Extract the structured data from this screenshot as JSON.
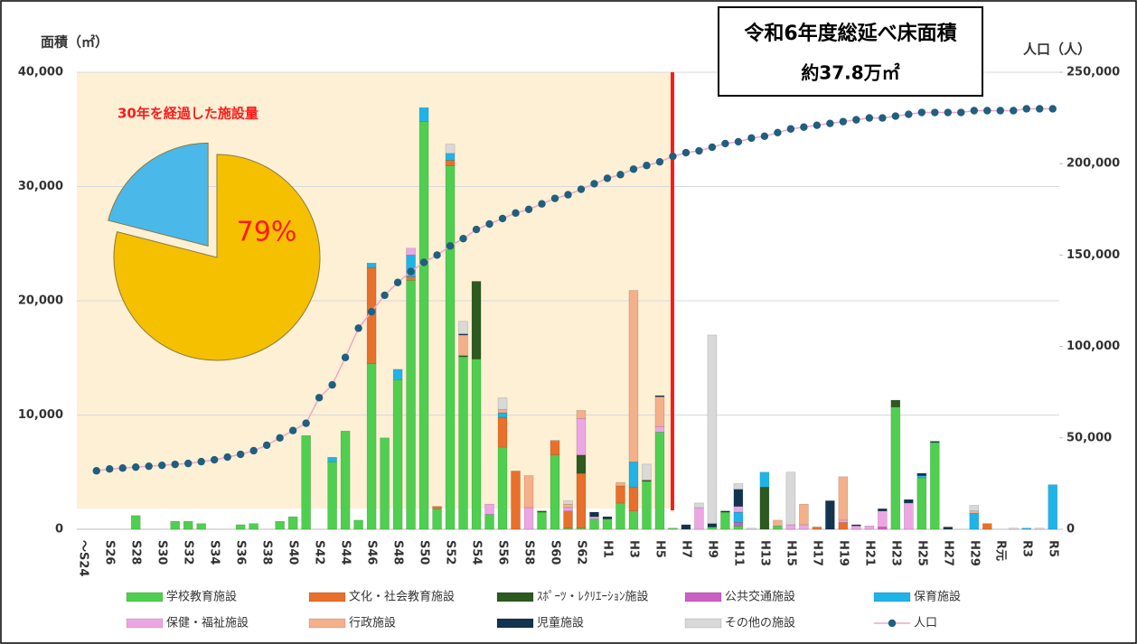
{
  "chart_data": [
    {
      "type": "bar",
      "stacked": true,
      "title": "令和6年度総延べ床面積",
      "subtitle": "約37.8万㎡",
      "ylabel": "面積（㎡）",
      "y2label": "人口（人）",
      "annotations": [
        "30年を経過した施設量"
      ],
      "categories": [
        "～S24",
        null,
        "S26",
        null,
        "S28",
        null,
        "S30",
        null,
        "S32",
        null,
        "S34",
        null,
        "S36",
        null,
        "S38",
        null,
        "S40",
        null,
        "S42",
        null,
        "S44",
        null,
        "S46",
        null,
        "S48",
        null,
        "S50",
        null,
        "S52",
        null,
        "S54",
        null,
        "S56",
        null,
        "S58",
        null,
        "S60",
        null,
        "S62",
        null,
        "H1",
        null,
        "H3",
        null,
        "H5",
        null,
        "H7",
        null,
        "H9",
        null,
        "H11",
        null,
        "H13",
        null,
        "H15",
        null,
        "H17",
        null,
        "H19",
        null,
        "H21",
        null,
        "H23",
        null,
        "H25",
        null,
        "H27",
        null,
        "H29",
        null,
        "R元",
        null,
        "R3",
        null,
        "R5"
      ],
      "ylim": [
        0,
        40000
      ],
      "yticks": [
        0,
        {
          "value": 10000,
          "label": "10,000"
        },
        {
          "value": 20000,
          "label": "20,000"
        },
        {
          "value": 30000,
          "label": "30,000"
        },
        {
          "value": 40000,
          "label": "40,000"
        }
      ],
      "y2lim": [
        0,
        250000
      ],
      "y2ticks": [
        0,
        {
          "value": 50000,
          "label": "50,000"
        },
        {
          "value": 100000,
          "label": "100,000"
        },
        {
          "value": 150000,
          "label": "150,000"
        },
        {
          "value": 200000,
          "label": "200,000"
        },
        {
          "value": 250000,
          "label": "250,000"
        }
      ],
      "grid": true,
      "legend": "bottom",
      "series": [
        {
          "name": "学校教育施設",
          "color": "#4fcf4f",
          "values": [
            0,
            0,
            0,
            0,
            1200,
            0,
            0,
            700,
            700,
            500,
            0,
            0,
            400,
            500,
            0,
            700,
            1100,
            8200,
            0,
            5900,
            8600,
            800,
            14500,
            8000,
            13100,
            21800,
            35700,
            1800,
            31800,
            15100,
            14900,
            1300,
            7200,
            0,
            0,
            1500,
            6500,
            100,
            100,
            900,
            900,
            2300,
            1600,
            4200,
            8500,
            100,
            0,
            0,
            200,
            1500,
            300,
            0,
            0,
            300,
            0,
            0,
            0,
            0,
            0,
            0,
            0,
            0,
            10700,
            0,
            4500,
            7600,
            0,
            0,
            0,
            0,
            0,
            0,
            0,
            0,
            0
          ]
        },
        {
          "name": "文化・社会教育施設",
          "color": "#e8702a",
          "values": [
            0,
            0,
            0,
            0,
            0,
            0,
            0,
            0,
            0,
            0,
            0,
            0,
            0,
            0,
            0,
            0,
            0,
            0,
            0,
            0,
            0,
            0,
            8400,
            0,
            0,
            300,
            0,
            200,
            500,
            0,
            0,
            0,
            2600,
            5100,
            0,
            0,
            1200,
            1500,
            4800,
            0,
            0,
            1500,
            2100,
            0,
            0,
            0,
            0,
            0,
            0,
            0,
            0,
            0,
            0,
            0,
            0,
            0,
            200,
            0,
            600,
            0,
            0,
            0,
            0,
            0,
            0,
            0,
            0,
            0,
            0,
            500,
            0,
            0,
            0,
            0,
            0
          ]
        },
        {
          "name": "ｽﾎﾟｰﾂ・ﾚｸﾘｴｰｼｮﾝ施設",
          "color": "#2d5a1e",
          "values": [
            0,
            0,
            0,
            0,
            0,
            0,
            0,
            0,
            0,
            0,
            0,
            0,
            0,
            0,
            0,
            0,
            0,
            0,
            0,
            0,
            0,
            0,
            0,
            0,
            0,
            0,
            0,
            0,
            0,
            100,
            6800,
            0,
            0,
            0,
            0,
            100,
            0,
            0,
            1600,
            0,
            0,
            0,
            0,
            100,
            0,
            0,
            0,
            0,
            0,
            0,
            0,
            0,
            3700,
            0,
            0,
            0,
            0,
            0,
            0,
            0,
            0,
            0,
            600,
            0,
            0,
            0,
            0,
            0,
            0,
            0,
            0,
            0,
            0,
            0,
            0
          ]
        },
        {
          "name": "公共交通施設",
          "color": "#cc5fc4",
          "values": [
            0,
            0,
            0,
            0,
            0,
            0,
            0,
            0,
            0,
            0,
            0,
            0,
            0,
            0,
            0,
            0,
            0,
            0,
            0,
            0,
            0,
            0,
            0,
            0,
            0,
            0,
            0,
            0,
            0,
            0,
            0,
            0,
            0,
            0,
            0,
            0,
            0,
            0,
            0,
            0,
            0,
            0,
            0,
            0,
            0,
            0,
            0,
            0,
            0,
            0,
            300,
            0,
            0,
            0,
            0,
            0,
            0,
            0,
            0,
            0,
            0,
            200,
            0,
            0,
            0,
            0,
            0,
            0,
            0,
            0,
            0,
            0,
            0,
            0,
            0
          ]
        },
        {
          "name": "保育施設",
          "color": "#1fb4e8",
          "values": [
            0,
            0,
            0,
            0,
            0,
            0,
            0,
            0,
            0,
            0,
            0,
            0,
            0,
            0,
            0,
            0,
            0,
            0,
            0,
            400,
            0,
            0,
            400,
            0,
            900,
            1900,
            1200,
            0,
            600,
            0,
            0,
            0,
            400,
            0,
            0,
            0,
            0,
            0,
            0,
            0,
            0,
            0,
            2200,
            0,
            0,
            0,
            0,
            0,
            0,
            0,
            900,
            0,
            1300,
            0,
            0,
            0,
            0,
            0,
            0,
            0,
            0,
            0,
            0,
            0,
            200,
            0,
            0,
            0,
            1400,
            0,
            0,
            0,
            100,
            0,
            3900
          ]
        },
        {
          "name": "保健・福祉施設",
          "color": "#eca6e4",
          "values": [
            0,
            0,
            0,
            0,
            0,
            0,
            0,
            0,
            0,
            0,
            0,
            0,
            0,
            0,
            0,
            0,
            0,
            0,
            0,
            0,
            0,
            0,
            0,
            0,
            0,
            600,
            0,
            0,
            0,
            0,
            0,
            900,
            0,
            0,
            1900,
            0,
            0,
            300,
            3200,
            200,
            0,
            0,
            0,
            0,
            500,
            0,
            0,
            1900,
            0,
            0,
            500,
            0,
            0,
            0,
            400,
            400,
            0,
            0,
            200,
            300,
            300,
            1400,
            0,
            2300,
            0,
            0,
            0,
            0,
            0,
            0,
            0,
            0,
            0,
            0,
            0
          ]
        },
        {
          "name": "行政施設",
          "color": "#f4b08a",
          "values": [
            0,
            0,
            0,
            0,
            0,
            0,
            0,
            0,
            0,
            0,
            0,
            0,
            0,
            0,
            0,
            0,
            0,
            0,
            0,
            0,
            0,
            0,
            0,
            0,
            0,
            0,
            0,
            0,
            0,
            1800,
            0,
            0,
            300,
            0,
            2800,
            0,
            100,
            300,
            700,
            0,
            0,
            300,
            15000,
            0,
            2600,
            0,
            0,
            0,
            0,
            0,
            0,
            0,
            0,
            500,
            0,
            1800,
            0,
            0,
            3800,
            0,
            0,
            0,
            0,
            0,
            0,
            0,
            0,
            0,
            200,
            0,
            0,
            0,
            0,
            0,
            0
          ]
        },
        {
          "name": "児童施設",
          "color": "#13344f",
          "values": [
            0,
            0,
            0,
            0,
            0,
            0,
            0,
            0,
            0,
            0,
            0,
            0,
            0,
            0,
            0,
            0,
            0,
            0,
            0,
            0,
            0,
            0,
            0,
            0,
            0,
            0,
            0,
            0,
            0,
            100,
            0,
            0,
            0,
            0,
            0,
            0,
            0,
            0,
            0,
            400,
            200,
            0,
            0,
            0,
            100,
            0,
            400,
            0,
            300,
            100,
            1500,
            0,
            0,
            0,
            0,
            0,
            0,
            2500,
            0,
            100,
            0,
            200,
            0,
            300,
            200,
            100,
            200,
            0,
            0,
            0,
            0,
            0,
            0,
            0,
            0
          ]
        },
        {
          "name": "その他の施設",
          "color": "#d9d9d9",
          "values": [
            0,
            0,
            0,
            0,
            0,
            0,
            0,
            0,
            0,
            0,
            0,
            0,
            0,
            0,
            0,
            0,
            0,
            0,
            0,
            0,
            0,
            0,
            0,
            0,
            0,
            0,
            0,
            0,
            800,
            1100,
            0,
            0,
            1000,
            0,
            0,
            0,
            0,
            300,
            0,
            0,
            0,
            0,
            0,
            1400,
            0,
            0,
            0,
            400,
            16500,
            0,
            500,
            100,
            0,
            0,
            4600,
            0,
            0,
            0,
            0,
            0,
            0,
            0,
            0,
            0,
            0,
            0,
            0,
            0,
            500,
            0,
            0,
            100,
            0,
            100,
            0
          ]
        },
        {
          "name": "人口",
          "type": "line",
          "axis": "y2",
          "color": "#f2a6c4",
          "marker_color": "#1f5f7f",
          "values": [
            null,
            32000,
            33000,
            33500,
            34000,
            34500,
            35000,
            35500,
            36000,
            37000,
            38000,
            39500,
            41000,
            43000,
            46000,
            50000,
            54000,
            58000,
            72000,
            79000,
            94000,
            110000,
            119000,
            128000,
            135000,
            141000,
            146000,
            150000,
            155000,
            159000,
            164000,
            167000,
            170000,
            173000,
            175000,
            178000,
            181000,
            183000,
            186000,
            189000,
            192000,
            194000,
            197000,
            199000,
            201000,
            204000,
            206000,
            207000,
            209000,
            211000,
            212000,
            214000,
            215000,
            217000,
            219000,
            220000,
            221000,
            222000,
            223000,
            224000,
            225000,
            225000,
            226000,
            227000,
            228000,
            228000,
            228000,
            228000,
            229000,
            229000,
            229000,
            229000,
            230000,
            230000,
            230000
          ]
        }
      ]
    },
    {
      "type": "pie",
      "values": [
        79,
        21
      ],
      "colors": [
        "#f5c000",
        "#4ab8e8"
      ],
      "value_labels": [
        "79%",
        null
      ]
    }
  ]
}
